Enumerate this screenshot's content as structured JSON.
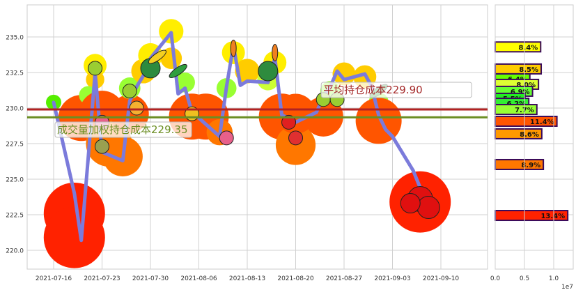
{
  "chart_data": [
    {
      "type": "line",
      "xlim": [
        "2021-07-12",
        "2021-09-17"
      ],
      "ylim": [
        218.7,
        237.25
      ],
      "grid": true,
      "x_ticks": [
        "2021-07-16",
        "2021-07-23",
        "2021-07-30",
        "2021-08-06",
        "2021-08-13",
        "2021-08-20",
        "2021-08-27",
        "2021-09-03",
        "2021-09-10"
      ],
      "y_ticks": [
        "220.0",
        "222.5",
        "225.0",
        "227.5",
        "230.0",
        "232.5",
        "235.0"
      ],
      "series": [
        {
          "color": "#7b7bdb",
          "x": [
            "2021-07-16",
            "2021-07-19",
            "2021-07-20",
            "2021-07-21",
            "2021-07-22",
            "2021-07-23",
            "2021-07-26",
            "2021-07-27",
            "2021-07-28",
            "2021-07-29",
            "2021-07-30",
            "2021-08-02",
            "2021-08-03",
            "2021-08-04",
            "2021-08-05",
            "2021-08-06",
            "2021-08-09",
            "2021-08-10",
            "2021-08-11",
            "2021-08-12",
            "2021-08-13",
            "2021-08-16",
            "2021-08-17",
            "2021-08-18",
            "2021-08-19",
            "2021-08-20",
            "2021-08-23",
            "2021-08-24",
            "2021-08-25",
            "2021-08-26",
            "2021-08-27",
            "2021-08-30",
            "2021-08-31",
            "2021-09-01",
            "2021-09-02",
            "2021-09-03",
            "2021-09-06",
            "2021-09-07"
          ],
          "y": [
            230.4,
            224.0,
            220.7,
            226.5,
            232.5,
            226.9,
            226.3,
            230.5,
            231.5,
            232.3,
            233.5,
            235.3,
            231.0,
            231.4,
            229.7,
            229.3,
            228.0,
            231.5,
            234.4,
            231.6,
            231.9,
            231.8,
            233.5,
            229.5,
            229.3,
            229.0,
            229.7,
            230.8,
            231.5,
            232.6,
            232.0,
            232.4,
            231.5,
            229.5,
            228.5,
            228.0,
            225.6,
            224.4
          ]
        }
      ],
      "blobs": [
        {
          "x": "2021-07-16",
          "y": 230.4,
          "color": "#55ee00",
          "size": 1
        },
        {
          "x": "2021-07-19",
          "y": 222.6,
          "color": "#ff2200",
          "size": 4
        },
        {
          "x": "2021-07-19",
          "y": 220.9,
          "color": "#ff2200",
          "size": 4
        },
        {
          "x": "2021-07-20",
          "y": 229.3,
          "color": "#ff5500",
          "size": 3
        },
        {
          "x": "2021-07-22",
          "y": 233.0,
          "color": "#ffee00",
          "size": 1.5
        },
        {
          "x": "2021-07-22",
          "y": 232.0,
          "color": "#ffcc00",
          "size": 1.2
        },
        {
          "x": "2021-07-21",
          "y": 230.9,
          "color": "#99ff33",
          "size": 1.2
        },
        {
          "x": "2021-07-23",
          "y": 229.6,
          "color": "#ff5500",
          "size": 3
        },
        {
          "x": "2021-07-24",
          "y": 227.5,
          "color": "#ff7700",
          "size": 3
        },
        {
          "x": "2021-07-26",
          "y": 226.6,
          "color": "#ff7700",
          "size": 2.6
        },
        {
          "x": "2021-07-27",
          "y": 229.6,
          "color": "#ff5500",
          "size": 2.5
        },
        {
          "x": "2021-07-27",
          "y": 231.4,
          "color": "#99ff33",
          "size": 1.4
        },
        {
          "x": "2021-07-29",
          "y": 232.6,
          "color": "#ffcc00",
          "size": 1.6
        },
        {
          "x": "2021-07-30",
          "y": 233.7,
          "color": "#ffee00",
          "size": 1.6
        },
        {
          "x": "2021-08-02",
          "y": 235.4,
          "color": "#ffee00",
          "size": 1.6
        },
        {
          "x": "2021-08-02",
          "y": 233.5,
          "color": "#ffcc00",
          "size": 1.4
        },
        {
          "x": "2021-08-04",
          "y": 231.8,
          "color": "#99ff33",
          "size": 1.3
        },
        {
          "x": "2021-08-05",
          "y": 229.4,
          "color": "#ff5500",
          "size": 3
        },
        {
          "x": "2021-08-07",
          "y": 229.4,
          "color": "#ff5500",
          "size": 3
        },
        {
          "x": "2021-08-09",
          "y": 228.3,
          "color": "#ff7700",
          "size": 1.7
        },
        {
          "x": "2021-08-10",
          "y": 231.4,
          "color": "#99ff33",
          "size": 1.3
        },
        {
          "x": "2021-08-11",
          "y": 233.9,
          "color": "#ffee00",
          "size": 1.5
        },
        {
          "x": "2021-08-13",
          "y": 232.6,
          "color": "#ffcc00",
          "size": 1.6
        },
        {
          "x": "2021-08-16",
          "y": 232.0,
          "color": "#ccff33",
          "size": 1.4
        },
        {
          "x": "2021-08-17",
          "y": 233.2,
          "color": "#ffee00",
          "size": 1.5
        },
        {
          "x": "2021-08-18",
          "y": 229.4,
          "color": "#ff5500",
          "size": 3
        },
        {
          "x": "2021-08-20",
          "y": 227.4,
          "color": "#ff7700",
          "size": 2.6
        },
        {
          "x": "2021-08-20",
          "y": 229.6,
          "color": "#ff5500",
          "size": 2.6
        },
        {
          "x": "2021-08-24",
          "y": 229.4,
          "color": "#ff5500",
          "size": 2.6
        },
        {
          "x": "2021-08-25",
          "y": 231.2,
          "color": "#99ff33",
          "size": 1.3
        },
        {
          "x": "2021-08-27",
          "y": 232.4,
          "color": "#ffcc00",
          "size": 1.5
        },
        {
          "x": "2021-08-30",
          "y": 232.2,
          "color": "#ffcc00",
          "size": 1.5
        },
        {
          "x": "2021-09-01",
          "y": 230.4,
          "color": "#99ff33",
          "size": 1.3
        },
        {
          "x": "2021-09-01",
          "y": 229.1,
          "color": "#ff5500",
          "size": 3
        },
        {
          "x": "2021-09-07",
          "y": 223.4,
          "color": "#ff2200",
          "size": 4
        }
      ],
      "fruits": [
        {
          "x": "2021-07-22",
          "y": 232.8,
          "icon": "kiwi-icon",
          "color": "#9acd32"
        },
        {
          "x": "2021-07-23",
          "y": 229.0,
          "icon": "radish-icon",
          "color": "#e8608a"
        },
        {
          "x": "2021-07-23",
          "y": 227.3,
          "icon": "pear-icon",
          "color": "#9aa050"
        },
        {
          "x": "2021-07-27",
          "y": 231.2,
          "icon": "kiwi-icon",
          "color": "#9acd32"
        },
        {
          "x": "2021-07-28",
          "y": 230.0,
          "icon": "pineapple-icon",
          "color": "#f5b030"
        },
        {
          "x": "2021-07-30",
          "y": 232.8,
          "icon": "watermelon-icon",
          "color": "#2e8b3e"
        },
        {
          "x": "2021-07-31",
          "y": 233.6,
          "icon": "banana-icon",
          "color": "#f5d020"
        },
        {
          "x": "2021-08-03",
          "y": 232.6,
          "icon": "pea-pod-icon",
          "color": "#2e9e3e"
        },
        {
          "x": "2021-08-05",
          "y": 229.6,
          "icon": "corn-icon",
          "color": "#f0c020"
        },
        {
          "x": "2021-08-10",
          "y": 227.9,
          "icon": "radish-icon",
          "color": "#e8608a"
        },
        {
          "x": "2021-08-11",
          "y": 234.2,
          "icon": "carrot-icon",
          "color": "#f08020"
        },
        {
          "x": "2021-08-16",
          "y": 232.6,
          "icon": "watermelon-icon",
          "color": "#2e8b3e"
        },
        {
          "x": "2021-08-17",
          "y": 233.9,
          "icon": "carrot-icon",
          "color": "#f08020"
        },
        {
          "x": "2021-08-19",
          "y": 229.0,
          "icon": "strawberry-icon",
          "color": "#e02020"
        },
        {
          "x": "2021-08-20",
          "y": 227.9,
          "icon": "watermelon-slice-icon",
          "color": "#e03030"
        },
        {
          "x": "2021-08-24",
          "y": 230.6,
          "icon": "kiwi-icon",
          "color": "#9acd32"
        },
        {
          "x": "2021-08-26",
          "y": 230.6,
          "icon": "kiwi-icon",
          "color": "#9acd32"
        },
        {
          "x": "2021-09-01",
          "y": 231.2,
          "icon": "pea-pod-icon",
          "color": "#2e9e3e"
        },
        {
          "x": "2021-09-07",
          "y": 223.6,
          "icon": "apple-icon",
          "color": "#e01010"
        }
      ],
      "hlines": [
        {
          "label": "平均持仓成本229.90",
          "value": 229.9,
          "color": "#b22222",
          "text_color": "#a52a2a",
          "label_at": "2021-08-24"
        },
        {
          "label": "成交量加权持仓成本229.35",
          "value": 229.35,
          "color": "#6b8e23",
          "text_color": "#6b8e23",
          "label_at": "2021-07-16"
        }
      ]
    },
    {
      "type": "bar",
      "orientation": "horizontal",
      "xlim": [
        0,
        13300000
      ],
      "x_ticks": [
        "0.0",
        "0.5",
        "1.0"
      ],
      "x_offset_label": "1e7",
      "bars": [
        {
          "price": 234.3,
          "value": 7770000,
          "label": "8.4%",
          "color": "#ffff00"
        },
        {
          "price": 232.75,
          "value": 7860000,
          "label": "8.5%",
          "color": "#ffcc00"
        },
        {
          "price": 232.06,
          "value": 5920000,
          "label": "6.4%",
          "color": "#66ff00"
        },
        {
          "price": 231.67,
          "value": 7400000,
          "label": "8.0%",
          "color": "#ddff33"
        },
        {
          "price": 231.18,
          "value": 6380000,
          "label": "6.9%",
          "color": "#66ff33"
        },
        {
          "price": 230.69,
          "value": 5090000,
          "label": "5.5%",
          "color": "#22ee22"
        },
        {
          "price": 230.34,
          "value": 5740000,
          "label": "6.2%",
          "color": "#33ee33"
        },
        {
          "price": 229.9,
          "value": 7120000,
          "label": "7.7%",
          "color": "#99ff33"
        },
        {
          "price": 229.07,
          "value": 10550000,
          "label": "11.4%",
          "color": "#ff5500"
        },
        {
          "price": 228.19,
          "value": 7960000,
          "label": "8.6%",
          "color": "#ff9900"
        },
        {
          "price": 226.03,
          "value": 8230000,
          "label": "8.9%",
          "color": "#ff7700"
        },
        {
          "price": 222.45,
          "value": 12400000,
          "label": "13.4%",
          "color": "#ff2200"
        }
      ]
    }
  ]
}
